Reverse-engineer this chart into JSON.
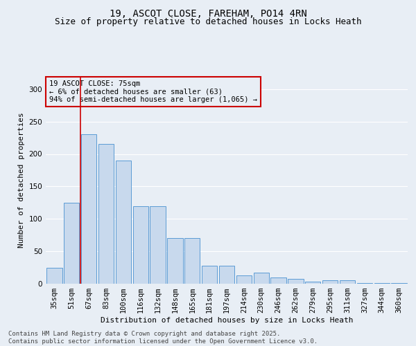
{
  "title1": "19, ASCOT CLOSE, FAREHAM, PO14 4RN",
  "title2": "Size of property relative to detached houses in Locks Heath",
  "xlabel": "Distribution of detached houses by size in Locks Heath",
  "ylabel": "Number of detached properties",
  "categories": [
    "35sqm",
    "51sqm",
    "67sqm",
    "83sqm",
    "100sqm",
    "116sqm",
    "132sqm",
    "148sqm",
    "165sqm",
    "181sqm",
    "197sqm",
    "214sqm",
    "230sqm",
    "246sqm",
    "262sqm",
    "279sqm",
    "295sqm",
    "311sqm",
    "327sqm",
    "344sqm",
    "360sqm"
  ],
  "values": [
    25,
    125,
    230,
    215,
    190,
    120,
    120,
    70,
    70,
    28,
    28,
    13,
    17,
    10,
    7,
    3,
    5,
    5,
    1,
    1,
    1
  ],
  "bar_color": "#c8d9ed",
  "bar_edge_color": "#5b9bd5",
  "vline_x_index": 1.5,
  "vline_color": "#cc0000",
  "annotation_text": "19 ASCOT CLOSE: 75sqm\n← 6% of detached houses are smaller (63)\n94% of semi-detached houses are larger (1,065) →",
  "annotation_box_color": "#cc0000",
  "bg_color": "#e8eef5",
  "grid_color": "#ffffff",
  "footer": "Contains HM Land Registry data © Crown copyright and database right 2025.\nContains public sector information licensed under the Open Government Licence v3.0.",
  "ylim": [
    0,
    320
  ],
  "title1_fontsize": 10,
  "title2_fontsize": 9,
  "xlabel_fontsize": 8,
  "ylabel_fontsize": 8,
  "tick_fontsize": 7.5,
  "footer_fontsize": 6.5,
  "annotation_fontsize": 7.5
}
